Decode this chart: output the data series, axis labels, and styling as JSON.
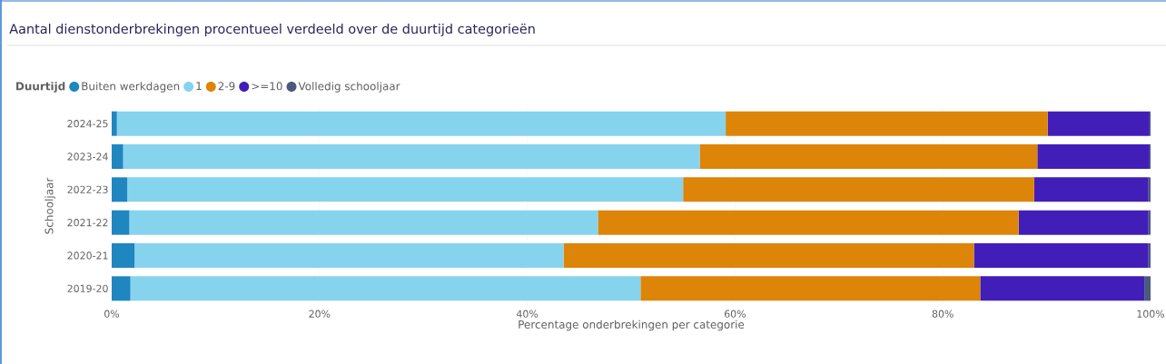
{
  "chart_data": {
    "type": "bar",
    "orientation": "horizontal",
    "stacked": true,
    "title": "Aantal dienstonderbrekingen procentueel verdeeld over de duurtijd categorieën",
    "legend_title": "Duurtijd",
    "legend": "top left",
    "xlabel": "Percentage onderbrekingen per categorie",
    "ylabel": "Schooljaar",
    "categories": [
      "2024-25",
      "2023-24",
      "2022-23",
      "2021-22",
      "2020-21",
      "2019-20"
    ],
    "series": [
      {
        "name": "Buiten werkdagen",
        "color": "#1f86c0",
        "values": [
          0.5,
          1.1,
          1.5,
          1.7,
          2.2,
          1.8
        ]
      },
      {
        "name": "1",
        "color": "#86d3ee",
        "values": [
          58.6,
          55.5,
          53.5,
          45.1,
          41.3,
          49.1
        ]
      },
      {
        "name": "2-9",
        "color": "#dd8509",
        "values": [
          31.0,
          32.5,
          33.8,
          40.5,
          39.5,
          32.7
        ]
      },
      {
        "name": ">=10",
        "color": "#421eb8",
        "values": [
          9.8,
          10.8,
          11.0,
          12.5,
          16.8,
          15.8
        ]
      },
      {
        "name": "Volledig schooljaar",
        "color": "#4a5a7c",
        "values": [
          0.1,
          0.1,
          0.2,
          0.2,
          0.2,
          0.6
        ]
      }
    ],
    "xlim": [
      0,
      100
    ],
    "xticks": [
      {
        "value": 0,
        "label": "0%"
      },
      {
        "value": 20,
        "label": "20%"
      },
      {
        "value": 40,
        "label": "40%"
      },
      {
        "value": 60,
        "label": "60%"
      },
      {
        "value": 80,
        "label": "80%"
      },
      {
        "value": 100,
        "label": "100%"
      }
    ],
    "grid": "x"
  }
}
